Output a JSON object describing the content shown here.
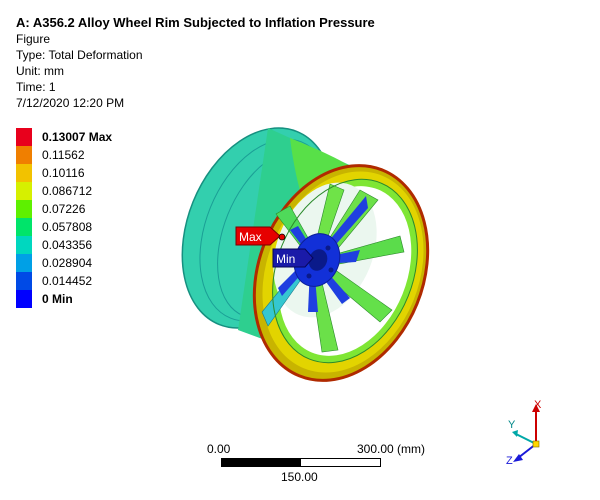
{
  "header": {
    "title": "A: A356.2 Alloy Wheel Rim Subjected to Inflation Pressure",
    "subtitle": "Figure",
    "type": "Type: Total Deformation",
    "unit": "Unit: mm",
    "time": "Time: 1",
    "timestamp": "7/12/2020 12:20 PM"
  },
  "legend": {
    "bands": [
      {
        "label": "0.13007 Max",
        "color": "#e8001c",
        "bold": true
      },
      {
        "label": "0.11562",
        "color": "#f07f00",
        "bold": false
      },
      {
        "label": "0.10116",
        "color": "#f2c200",
        "bold": false
      },
      {
        "label": "0.086712",
        "color": "#d6f000",
        "bold": false
      },
      {
        "label": "0.07226",
        "color": "#5ef000",
        "bold": false
      },
      {
        "label": "0.057808",
        "color": "#00e46a",
        "bold": false
      },
      {
        "label": "0.043356",
        "color": "#00d7bf",
        "bold": false
      },
      {
        "label": "0.028904",
        "color": "#00a0e6",
        "bold": false
      },
      {
        "label": "0.014452",
        "color": "#004ae6",
        "bold": false
      },
      {
        "label": "0 Min",
        "color": "#0000ff",
        "bold": true
      }
    ]
  },
  "probes": {
    "max_label": "Max",
    "min_label": "Min"
  },
  "scale": {
    "left": "0.00",
    "right": "300.00 (mm)",
    "mid": "150.00"
  },
  "triad": {
    "x": "X",
    "y": "Y",
    "z": "Z"
  },
  "colors": {
    "probe_max": "#e60000",
    "probe_min": "#1a1aa8",
    "rim_outer": "#c8b400"
  }
}
